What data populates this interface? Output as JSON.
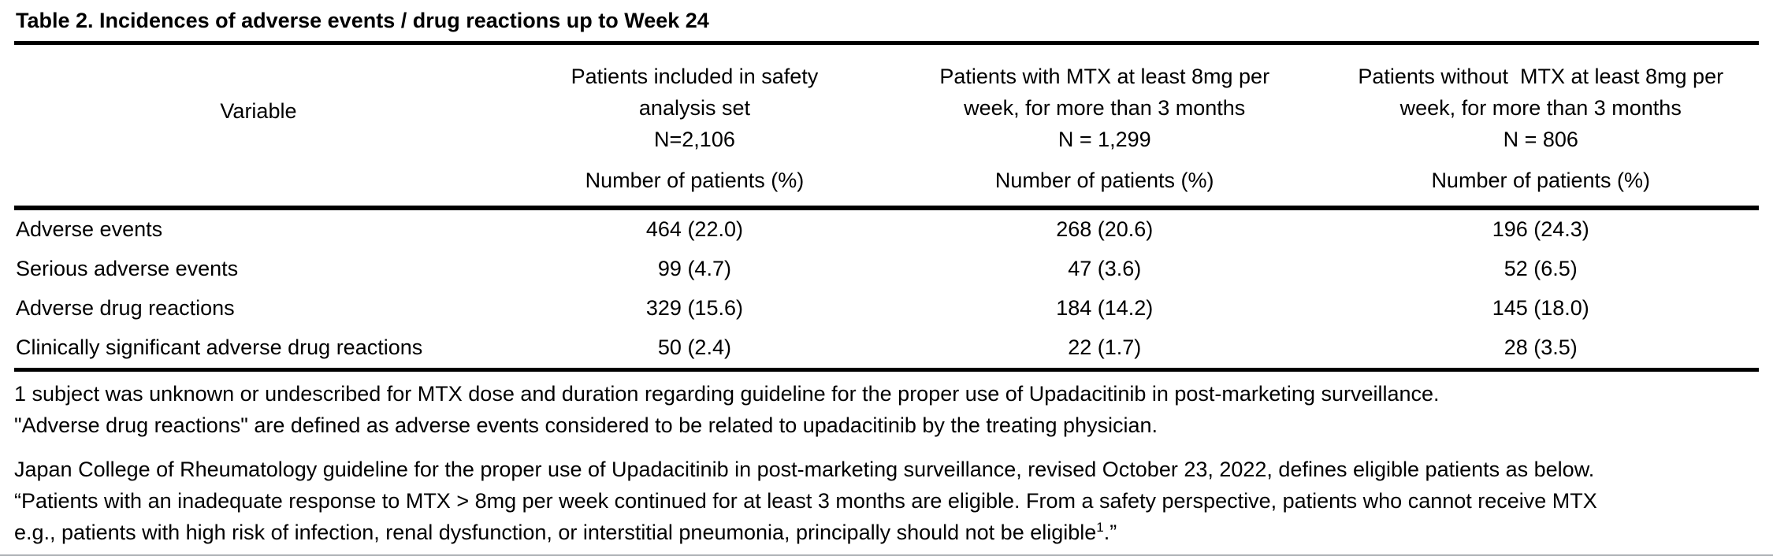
{
  "title": "Table 2. Incidences of adverse events / drug reactions up to Week 24",
  "table": {
    "variable_header": "Variable",
    "columns": [
      {
        "title_lines": [
          "Patients included in safety",
          "analysis set"
        ],
        "n": "N=2,106",
        "sub": "Number of patients (%)"
      },
      {
        "title_lines": [
          "Patients with MTX at least 8mg per",
          "week, for more than 3 months"
        ],
        "n": "N = 1,299",
        "sub": "Number of patients (%)"
      },
      {
        "title_lines": [
          "Patients without  MTX at least 8mg per",
          "week, for more than 3 months"
        ],
        "n": "N = 806",
        "sub": "Number of patients (%)"
      }
    ],
    "rows": [
      {
        "label": "Adverse events",
        "values": [
          "464 (22.0)",
          "268 (20.6)",
          "196 (24.3)"
        ]
      },
      {
        "label": "Serious adverse events",
        "values": [
          "99 (4.7)",
          "47 (3.6)",
          "52 (6.5)"
        ]
      },
      {
        "label": "Adverse drug reactions",
        "values": [
          "329 (15.6)",
          "184 (14.2)",
          "145 (18.0)"
        ]
      },
      {
        "label": "Clinically significant adverse drug reactions",
        "values": [
          "50 (2.4)",
          "22 (1.7)",
          "28 (3.5)"
        ]
      }
    ]
  },
  "footnotes": {
    "para1": [
      "1 subject was unknown or undescribed for MTX dose and duration regarding guideline for the proper use of Upadacitinib in post-marketing surveillance.",
      "\"Adverse drug reactions\" are defined as adverse events considered to be related to upadacitinib by the treating physician."
    ],
    "para2": [
      "Japan College of Rheumatology guideline for the proper use of Upadacitinib in post-marketing surveillance, revised October 23, 2022, defines eligible patients as below.",
      "“Patients with an inadequate response to MTX > 8mg per week continued for at least 3 months are eligible. From a safety perspective, patients who cannot receive MTX"
    ],
    "para2_last_line": {
      "pre": "e.g., patients with high risk of infection, renal dysfunction, or interstitial pneumonia, principally should not be eligible",
      "sup": "1",
      "post": ".”"
    }
  },
  "colors": {
    "text": "#000000",
    "rule": "#000000",
    "bottom_rule": "#aeb2b6",
    "background": "#ffffff"
  }
}
